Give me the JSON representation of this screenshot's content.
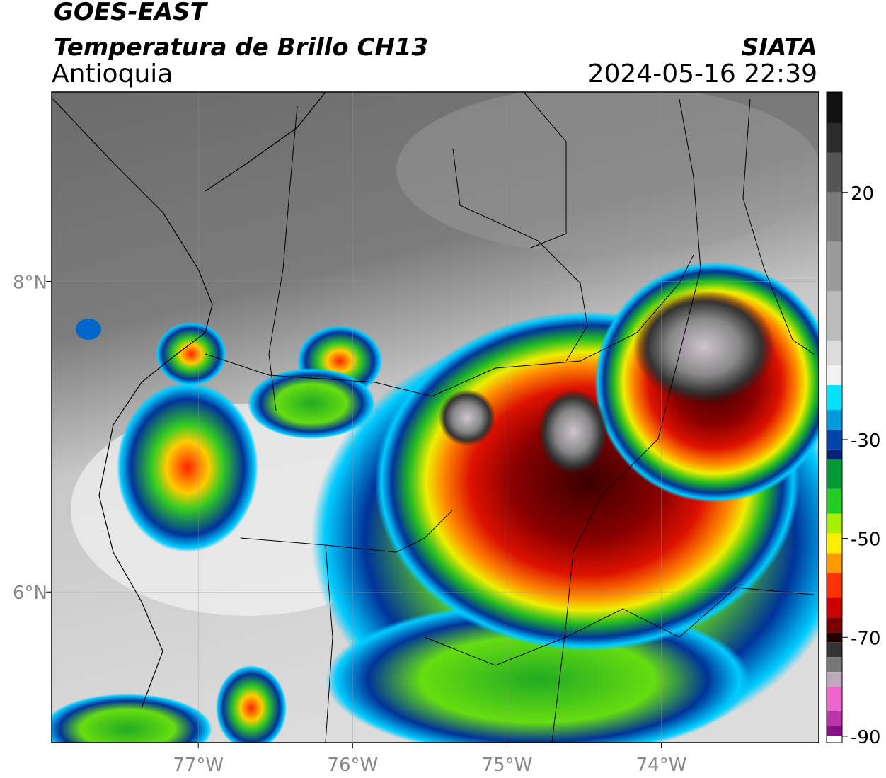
{
  "header": {
    "title": "GOES-EAST",
    "subtitle": "Temperatura de Brillo CH13",
    "region": "Antioquia",
    "source": "SIATA",
    "datetime": "2024-05-16 22:39"
  },
  "map": {
    "xlim": [
      -77.95,
      -72.98
    ],
    "ylim": [
      5.03,
      9.22
    ],
    "xticks": [
      {
        "value": -77,
        "label": "77°W"
      },
      {
        "value": -76,
        "label": "76°W"
      },
      {
        "value": -75,
        "label": "75°W"
      },
      {
        "value": -74,
        "label": "74°W"
      }
    ],
    "yticks": [
      {
        "value": 6,
        "label": "6°N"
      },
      {
        "value": 8,
        "label": "8°N"
      }
    ],
    "grid": true
  },
  "colorbar": {
    "lim": [
      -91.3,
      40.3
    ],
    "ticks": [
      20,
      -30,
      -50,
      -70,
      -90
    ],
    "colors": [
      {
        "value": 40.3,
        "color": "#111111"
      },
      {
        "value": 34,
        "color": "#2a2a2a"
      },
      {
        "value": 28,
        "color": "#555555"
      },
      {
        "value": 20,
        "color": "#7a7a7a"
      },
      {
        "value": 10,
        "color": "#9a9a9a"
      },
      {
        "value": 0,
        "color": "#bcbcbc"
      },
      {
        "value": -10,
        "color": "#dddddd"
      },
      {
        "value": -15,
        "color": "#f2f2f2"
      },
      {
        "value": -19,
        "color": "#00e0ff"
      },
      {
        "value": -24,
        "color": "#0099dd"
      },
      {
        "value": -28,
        "color": "#0044aa"
      },
      {
        "value": -32,
        "color": "#002277"
      },
      {
        "value": -34,
        "color": "#009933"
      },
      {
        "value": -40,
        "color": "#22cc22"
      },
      {
        "value": -45,
        "color": "#aaee00"
      },
      {
        "value": -49,
        "color": "#ffee00"
      },
      {
        "value": -53,
        "color": "#ff9900"
      },
      {
        "value": -57,
        "color": "#ff3300"
      },
      {
        "value": -62,
        "color": "#cc0000"
      },
      {
        "value": -66,
        "color": "#7a0000"
      },
      {
        "value": -69,
        "color": "#220000"
      },
      {
        "value": -71,
        "color": "#333333"
      },
      {
        "value": -74,
        "color": "#777777"
      },
      {
        "value": -77,
        "color": "#bbaabb"
      },
      {
        "value": -80,
        "color": "#ee66cc"
      },
      {
        "value": -85,
        "color": "#bb33aa"
      },
      {
        "value": -88,
        "color": "#881188"
      },
      {
        "value": -90,
        "color": "#ffffff"
      }
    ]
  }
}
